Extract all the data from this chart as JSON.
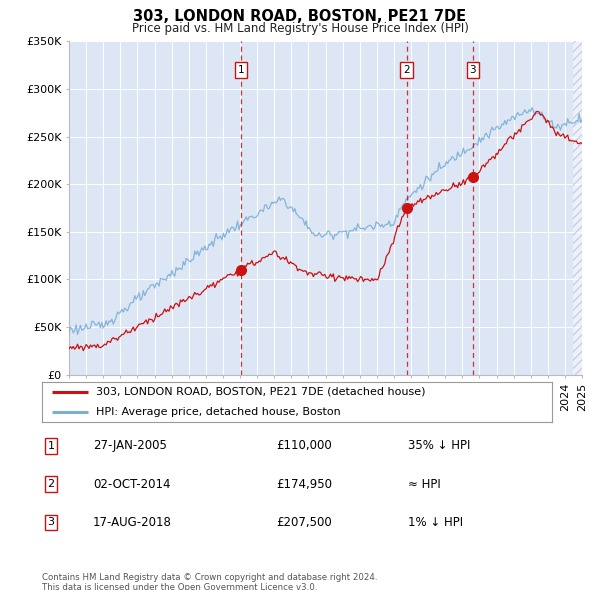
{
  "title": "303, LONDON ROAD, BOSTON, PE21 7DE",
  "subtitle": "Price paid vs. HM Land Registry's House Price Index (HPI)",
  "ylim": [
    0,
    350000
  ],
  "yticks": [
    0,
    50000,
    100000,
    150000,
    200000,
    250000,
    300000,
    350000
  ],
  "ytick_labels": [
    "£0",
    "£50K",
    "£100K",
    "£150K",
    "£200K",
    "£250K",
    "£300K",
    "£350K"
  ],
  "fig_bg_color": "#f5f5f5",
  "plot_bg_color": "#dce6f5",
  "grid_color": "#ffffff",
  "hpi_color": "#7bafd4",
  "price_color": "#cc1111",
  "vline_color": "#cc1111",
  "xmin": 1995,
  "xmax": 2025,
  "legend_entry1": "303, LONDON ROAD, BOSTON, PE21 7DE (detached house)",
  "legend_entry2": "HPI: Average price, detached house, Boston",
  "annotations": [
    {
      "num": 1,
      "x_year": 2005.07,
      "date": "27-JAN-2005",
      "price": "£110,000",
      "hpi_rel": "35% ↓ HPI",
      "y_val": 110000
    },
    {
      "num": 2,
      "x_year": 2014.75,
      "date": "02-OCT-2014",
      "price": "£174,950",
      "hpi_rel": "≈ HPI",
      "y_val": 174950
    },
    {
      "num": 3,
      "x_year": 2018.62,
      "date": "17-AUG-2018",
      "price": "£207,500",
      "hpi_rel": "1% ↓ HPI",
      "y_val": 207500
    }
  ],
  "footer_line1": "Contains HM Land Registry data © Crown copyright and database right 2024.",
  "footer_line2": "This data is licensed under the Open Government Licence v3.0."
}
